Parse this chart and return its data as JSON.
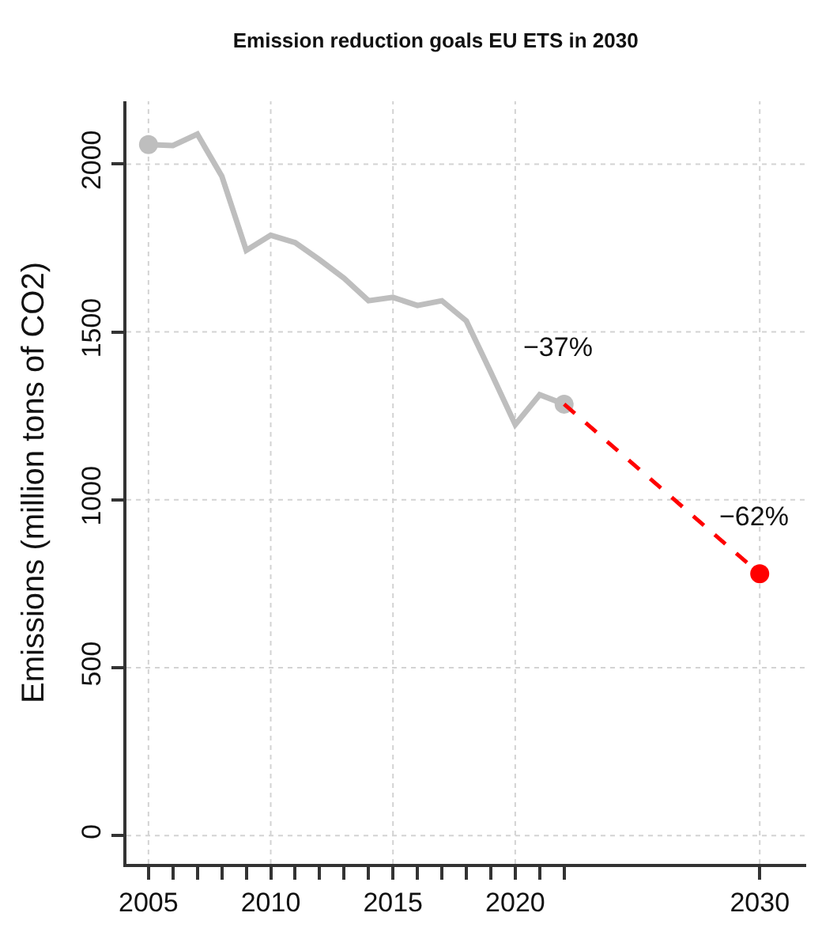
{
  "chart_data": {
    "type": "line",
    "title": "Emission reduction goals EU ETS in 2030",
    "ylabel": "Emissions (million tons of CO2)",
    "xlim": [
      2004.1,
      2031.9
    ],
    "ylim": [
      -84,
      2187
    ],
    "xticks": [
      2005,
      {
        "value": 2006,
        "label": null
      },
      {
        "value": 2007,
        "label": null
      },
      {
        "value": 2008,
        "label": null
      },
      {
        "value": 2009,
        "label": null
      },
      2010,
      {
        "value": 2011,
        "label": null
      },
      {
        "value": 2012,
        "label": null
      },
      {
        "value": 2013,
        "label": null
      },
      {
        "value": 2014,
        "label": null
      },
      2015,
      {
        "value": 2016,
        "label": null
      },
      {
        "value": 2017,
        "label": null
      },
      {
        "value": 2018,
        "label": null
      },
      {
        "value": 2019,
        "label": null
      },
      2020,
      {
        "value": 2021,
        "label": null
      },
      {
        "value": 2022,
        "label": null
      },
      2030
    ],
    "yticks": [
      0,
      500,
      1000,
      1500,
      2000
    ],
    "grid": true,
    "series": [
      {
        "color": "#bebebe",
        "marker": "none",
        "line_style": "solid",
        "x": [
          2005,
          2006,
          2007,
          2008,
          2009,
          2010,
          2011,
          2012,
          2013,
          2014,
          2015,
          2016,
          2017,
          2018,
          2019,
          2020,
          2021,
          2022
        ],
        "values": [
          2058,
          2055,
          2089,
          1964,
          1743,
          1788,
          1766,
          1715,
          1660,
          1593,
          1603,
          1579,
          1593,
          1533,
          1380,
          1224,
          1313,
          1285
        ]
      },
      {
        "type": "scatter",
        "color": "#bebebe",
        "marker": "circle",
        "x": [
          2005,
          2022
        ],
        "values": [
          2058,
          1285
        ]
      },
      {
        "color": "#ff0000",
        "marker": "none",
        "line_style": "dashed",
        "x": [
          2022,
          2030
        ],
        "values": [
          1285,
          780
        ]
      },
      {
        "type": "scatter",
        "color": "#ff0000",
        "marker": "circle",
        "x": [
          2030
        ],
        "values": [
          780
        ]
      }
    ],
    "annotations": [
      {
        "text": "−37%",
        "x": 2022,
        "y": 1285
      },
      {
        "text": "−62%",
        "x": 2030,
        "y": 780
      }
    ]
  }
}
